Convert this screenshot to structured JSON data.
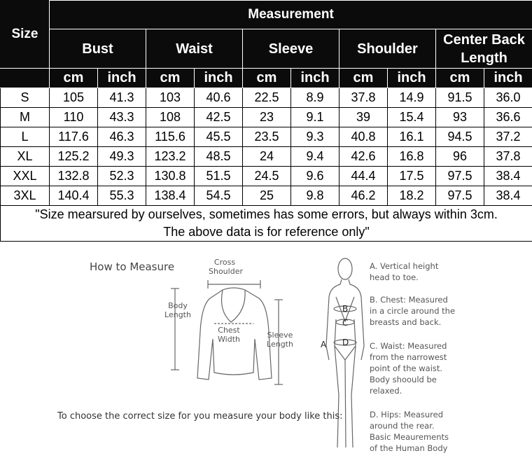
{
  "table": {
    "title": "Measurement",
    "size_header": "Size",
    "columns": [
      "Bust",
      "Waist",
      "Sleeve",
      "Shoulder",
      "Center Back Length"
    ],
    "units": [
      "cm",
      "inch"
    ],
    "rows": [
      {
        "size": "S",
        "values": [
          "105",
          "41.3",
          "103",
          "40.6",
          "22.5",
          "8.9",
          "37.8",
          "14.9",
          "91.5",
          "36.0"
        ]
      },
      {
        "size": "M",
        "values": [
          "110",
          "43.3",
          "108",
          "42.5",
          "23",
          "9.1",
          "39",
          "15.4",
          "93",
          "36.6"
        ]
      },
      {
        "size": "L",
        "values": [
          "117.6",
          "46.3",
          "115.6",
          "45.5",
          "23.5",
          "9.3",
          "40.8",
          "16.1",
          "94.5",
          "37.2"
        ]
      },
      {
        "size": "XL",
        "values": [
          "125.2",
          "49.3",
          "123.2",
          "48.5",
          "24",
          "9.4",
          "42.6",
          "16.8",
          "96",
          "37.8"
        ]
      },
      {
        "size": "XXL",
        "values": [
          "132.8",
          "52.3",
          "130.8",
          "51.5",
          "24.5",
          "9.6",
          "44.4",
          "17.5",
          "97.5",
          "38.4"
        ]
      },
      {
        "size": "3XL",
        "values": [
          "140.4",
          "55.3",
          "138.4",
          "54.5",
          "25",
          "9.8",
          "46.2",
          "18.2",
          "97.5",
          "38.4"
        ]
      }
    ],
    "note_line1": "\"Size mearsured by ourselves, sometimes has some errors, but always within 3cm.",
    "note_line2": "The above data is for reference only\""
  },
  "guide": {
    "title": "How to Measure",
    "cross_shoulder": "Cross Shoulder",
    "body_length": "Body Length",
    "chest_width": "Chest Width",
    "sleeve_length": "Sleeve Length",
    "instruction": "To choose the correct size for you measure your body like this:",
    "body_labels": [
      "A",
      "B",
      "C",
      "D"
    ],
    "descriptions": [
      "A. Vertical height head to toe.",
      "B. Chest: Measured in a circle around the breasts and back.",
      "C. Waist: Measured from the narrowest point of the waist. Body shoould be relaxed.",
      "D. Hips: Measured around the rear. Basic Meaurements of the Human Body"
    ]
  }
}
